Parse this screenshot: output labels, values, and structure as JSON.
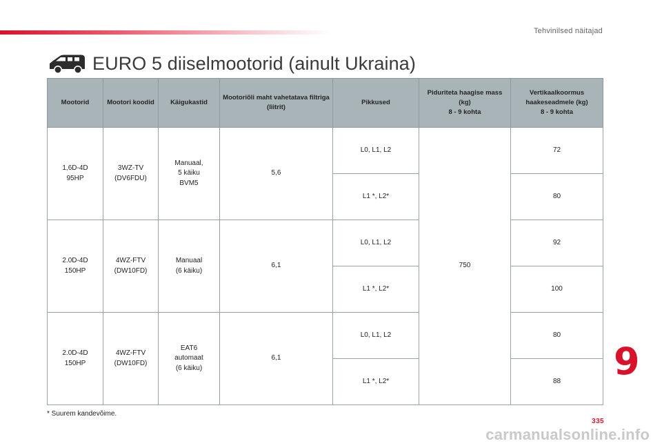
{
  "header": {
    "chapter_title": "Tehvinilsed näitajad",
    "accent_color": "#d9122b"
  },
  "section": {
    "icon": "van-icon",
    "title": "EURO 5 diiselmootorid (ainult Ukraina)"
  },
  "table": {
    "columns": [
      "Mootorid",
      "Mootori koodid",
      "Käigukastid",
      "Mootoriõli maht vahetatava filtriga (liitrit)",
      "Pikkused",
      "Piduriteta haagise mass (kg)\n8 - 9 kohta",
      "Vertikaalkoormus haakeseadmele (kg)\n8 - 9 kohta"
    ],
    "rows": [
      {
        "engine": "1,6D-4D\n95HP",
        "code": "3WZ-TV\n(DV6FDU)",
        "gearbox": "Manuaal,\n5 käiku\nBVM5",
        "oil": "5,6",
        "lengths": [
          "L0, L1, L2",
          "L1 *, L2*"
        ],
        "vertical_load": [
          "72",
          "80"
        ]
      },
      {
        "engine": "2.0D-4D\n150HP",
        "code": "4WZ-FTV\n(DW10FD)",
        "gearbox": "Manuaal\n(6 käiku)",
        "oil": "6,1",
        "lengths": [
          "L0, L1, L2",
          "L1 *, L2*"
        ],
        "vertical_load": [
          "92",
          "100"
        ]
      },
      {
        "engine": "2.0D-4D\n150HP",
        "code": "4WZ-FTV\n(DW10FD)",
        "gearbox": "EAT6\nautomaat\n(6 käiku)",
        "oil": "6,1",
        "lengths": [
          "L0, L1, L2",
          "L1 *, L2*"
        ],
        "vertical_load": [
          "80",
          "88"
        ]
      }
    ],
    "unbraked_trailer_mass": "750"
  },
  "footnote": "* Suurem kandevõime.",
  "chapter_number": "9",
  "page_number": "335",
  "watermark": "carmanualsonline.info"
}
